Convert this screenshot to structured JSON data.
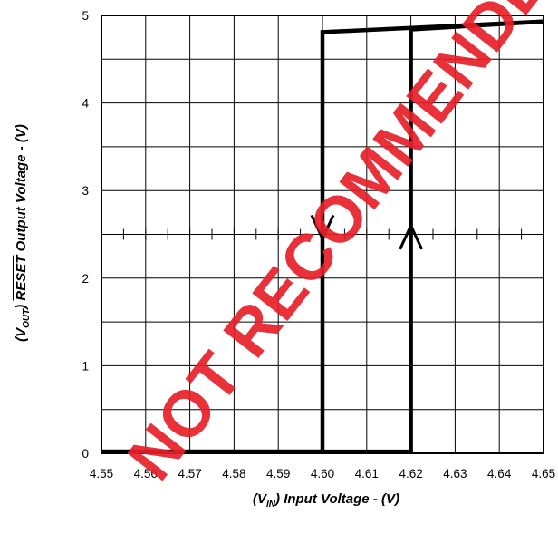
{
  "chart_data": {
    "type": "line",
    "xlabel": {
      "prefix": "(V",
      "sub": "IN",
      "suffix": ")  Input Voltage - (V)"
    },
    "ylabel": {
      "prefix": "(V",
      "sub": "OUT",
      "middle": ")  ",
      "overline": "RESET",
      "suffix": " Output Voltage - (V)"
    },
    "xlim": [
      4.55,
      4.65
    ],
    "ylim": [
      0,
      5
    ],
    "x_ticks": [
      "4.55",
      "4.56",
      "4.57",
      "4.58",
      "4.59",
      "4.60",
      "4.61",
      "4.62",
      "4.63",
      "4.64",
      "4.65"
    ],
    "y_ticks": [
      "0",
      "1",
      "2",
      "3",
      "4",
      "5"
    ],
    "grid": true,
    "series": [
      {
        "direction": "rising",
        "x": [
          4.55,
          4.62,
          4.62,
          4.65
        ],
        "y": [
          0.02,
          0.02,
          4.84,
          4.93
        ]
      },
      {
        "direction": "falling",
        "x": [
          4.65,
          4.6,
          4.6,
          4.55
        ],
        "y": [
          4.93,
          4.81,
          0.02,
          0.02
        ]
      }
    ],
    "arrows": [
      {
        "direction": "down",
        "x": 4.6,
        "y": 2.45
      },
      {
        "direction": "up",
        "x": 4.62,
        "y": 2.6
      }
    ]
  },
  "watermark": {
    "text": "NOT RECOMMENDED",
    "color": "#e8202a"
  }
}
